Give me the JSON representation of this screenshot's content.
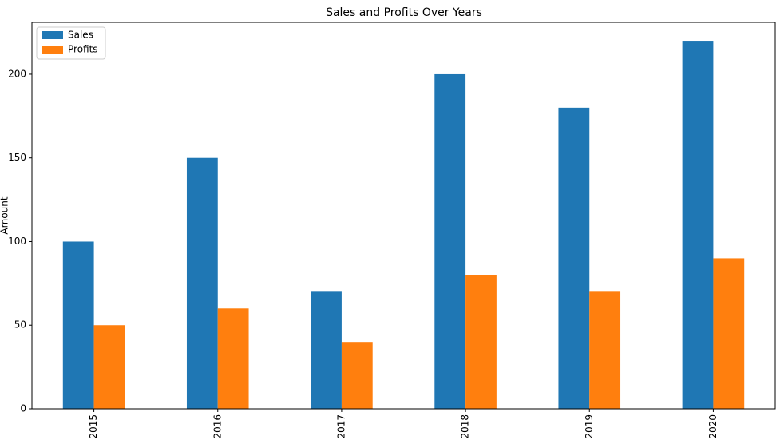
{
  "chart_data": {
    "type": "bar",
    "title": "Sales and Profits Over Years",
    "ylabel": "Amount",
    "categories": [
      "2015",
      "2016",
      "2017",
      "2018",
      "2019",
      "2020"
    ],
    "series": [
      {
        "name": "Sales",
        "color": "#1f77b4",
        "values": [
          100,
          150,
          70,
          200,
          180,
          220
        ]
      },
      {
        "name": "Profits",
        "color": "#ff7f0e",
        "values": [
          50,
          60,
          40,
          80,
          70,
          90
        ]
      }
    ],
    "ylim": [
      0,
      231
    ],
    "yticks": [
      0,
      50,
      100,
      150,
      200
    ],
    "legend": "upper left"
  }
}
